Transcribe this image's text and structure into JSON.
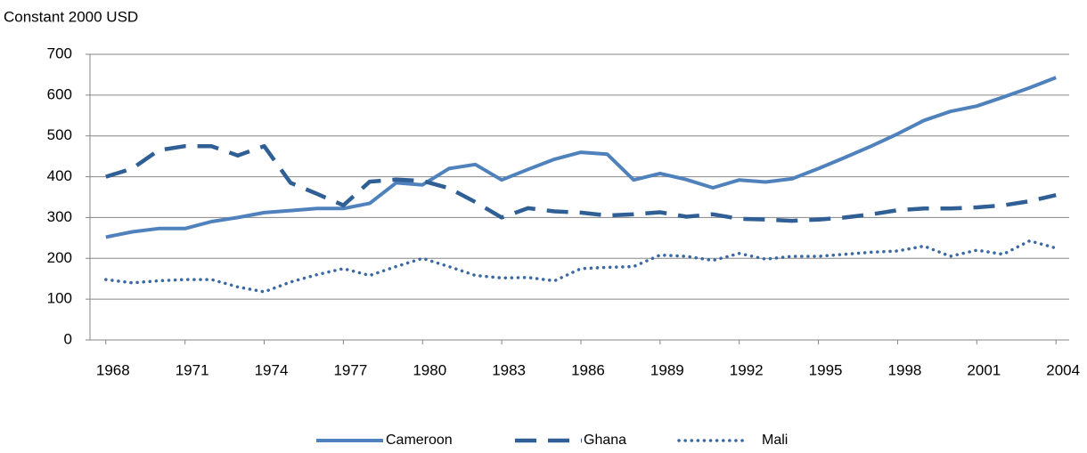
{
  "chart_data": {
    "type": "line",
    "y_axis_label": "Constant 2000 USD",
    "x": [
      1968,
      1969,
      1970,
      1971,
      1972,
      1973,
      1974,
      1975,
      1976,
      1977,
      1978,
      1979,
      1980,
      1981,
      1982,
      1983,
      1984,
      1985,
      1986,
      1987,
      1988,
      1989,
      1990,
      1991,
      1992,
      1993,
      1994,
      1995,
      1996,
      1997,
      1998,
      1999,
      2000,
      2001,
      2002,
      2003,
      2004
    ],
    "xlim": [
      1967.4,
      2004.5
    ],
    "xticks": [
      1968,
      1971,
      1974,
      1977,
      1980,
      1983,
      1986,
      1989,
      1992,
      1995,
      1998,
      2001,
      2004
    ],
    "ylim": [
      0,
      700
    ],
    "yticks": [
      0,
      100,
      200,
      300,
      400,
      500,
      600,
      700
    ],
    "grid": true,
    "legend": "bottom",
    "series": [
      {
        "name": "Cameroon",
        "color": "#4f81bd",
        "line_style": "solid",
        "values": [
          252,
          265,
          273,
          273,
          290,
          300,
          312,
          317,
          322,
          322,
          335,
          385,
          380,
          420,
          430,
          392,
          418,
          443,
          460,
          455,
          392,
          408,
          393,
          373,
          392,
          387,
          395,
          420,
          447,
          475,
          505,
          538,
          560,
          573,
          595,
          618,
          643
        ]
      },
      {
        "name": "Ghana",
        "color": "#2f5f94",
        "line_style": "dashed",
        "values": [
          400,
          420,
          465,
          475,
          475,
          452,
          475,
          385,
          358,
          330,
          388,
          393,
          390,
          372,
          338,
          300,
          323,
          315,
          312,
          305,
          308,
          313,
          302,
          308,
          297,
          295,
          292,
          295,
          300,
          308,
          318,
          322,
          322,
          325,
          330,
          340,
          355
        ]
      },
      {
        "name": "Mali",
        "color": "#3a68a3",
        "line_style": "dotted",
        "values": [
          148,
          140,
          145,
          148,
          148,
          130,
          118,
          142,
          160,
          175,
          158,
          180,
          200,
          180,
          158,
          152,
          153,
          145,
          175,
          178,
          180,
          208,
          205,
          195,
          212,
          198,
          205,
          205,
          210,
          215,
          218,
          230,
          205,
          220,
          210,
          243,
          225
        ]
      }
    ]
  }
}
